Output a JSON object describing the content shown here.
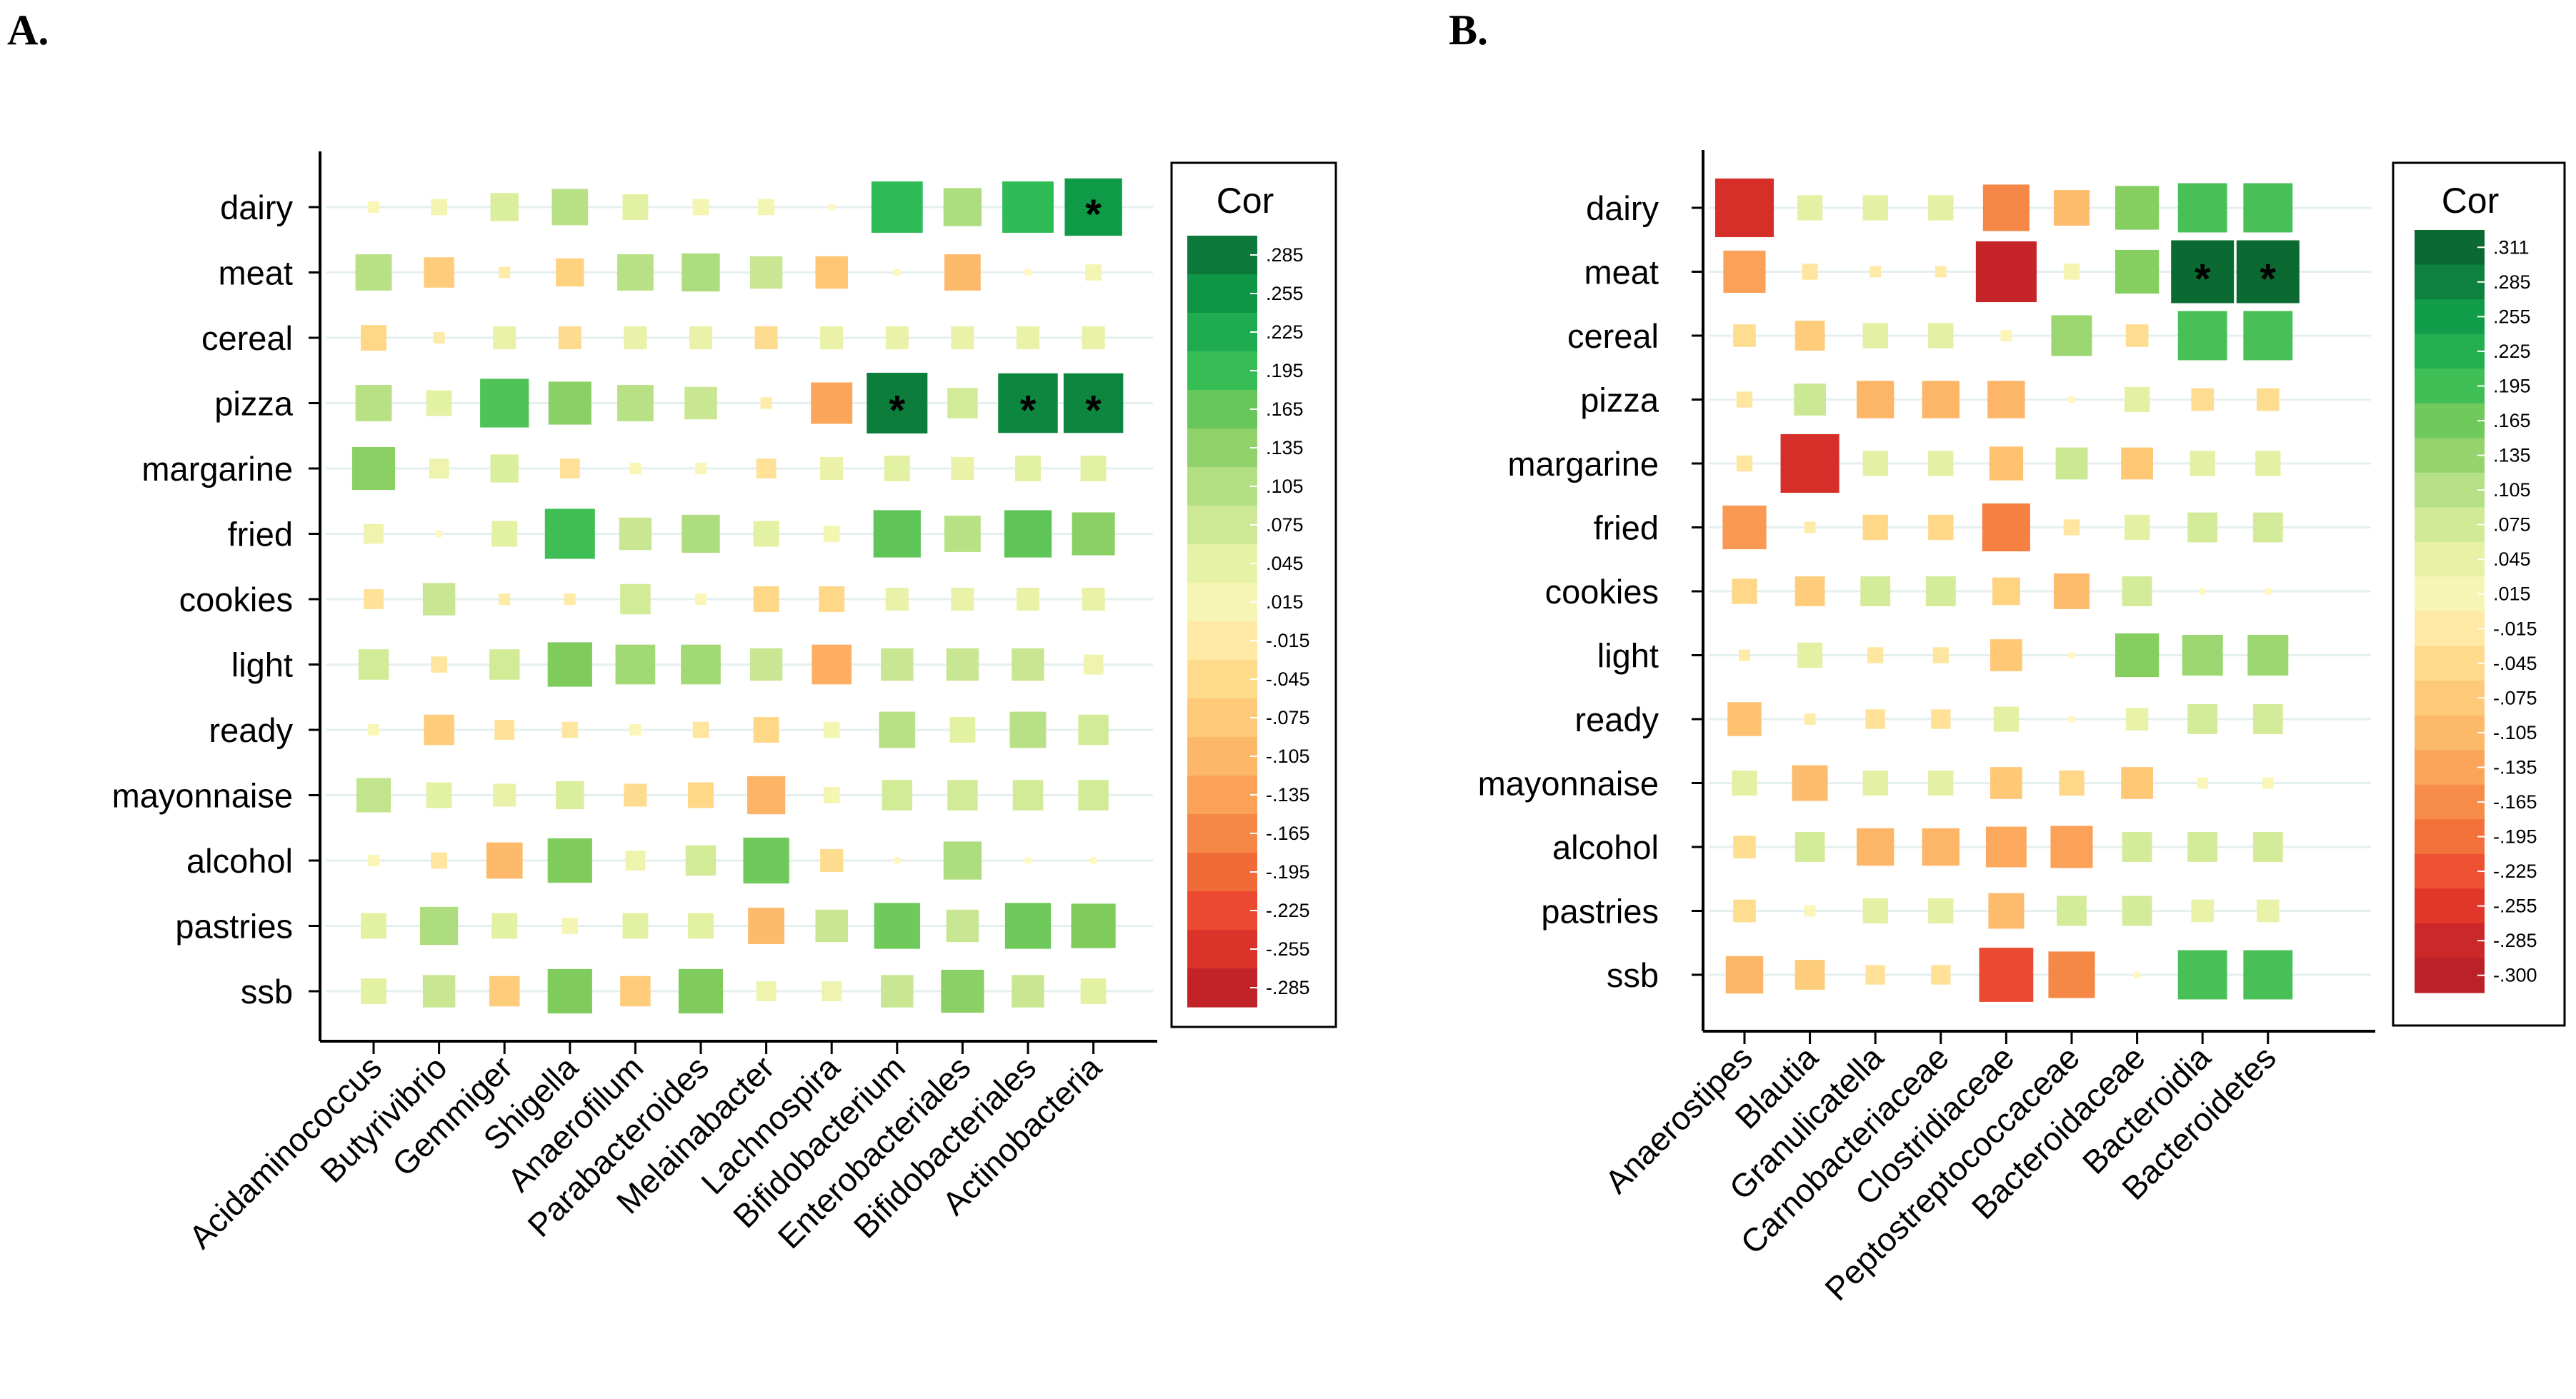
{
  "chart_data": [
    {
      "type": "heatmap",
      "panel": "A.",
      "legend_title": "Cor",
      "legend_ticks": [
        ".285",
        ".255",
        ".225",
        ".195",
        ".165",
        ".135",
        ".105",
        ".075",
        ".045",
        ".015",
        "-.015",
        "-.045",
        "-.075",
        "-.105",
        "-.135",
        "-.165",
        "-.195",
        "-.225",
        "-.255",
        "-.285"
      ],
      "scale_max": 0.3,
      "rows": [
        "dairy",
        "meat",
        "cereal",
        "pizza",
        "margarine",
        "fried",
        "cookies",
        "light",
        "ready",
        "mayonnaise",
        "alcohol",
        "pastries",
        "ssb"
      ],
      "columns": [
        "Acidaminococcus",
        "Butyrivibrio",
        "Gemmiger",
        "Shigella",
        "Anaerofilum",
        "Parabacteroides",
        "Melainabacter",
        "Lachnospira",
        "Bifidobacterium",
        "Enterobacteriales",
        "Bifidobacteriales",
        "Actinobacteria"
      ],
      "values": [
        [
          0.01,
          0.02,
          0.06,
          0.1,
          0.05,
          0.02,
          0.02,
          0.0,
          0.2,
          0.11,
          0.2,
          0.25
        ],
        [
          0.1,
          -0.07,
          -0.01,
          -0.06,
          0.1,
          0.11,
          0.08,
          -0.08,
          0.0,
          -0.1,
          0.0,
          0.02
        ],
        [
          -0.05,
          -0.01,
          0.04,
          -0.04,
          0.04,
          0.04,
          -0.04,
          0.04,
          0.04,
          0.04,
          0.04,
          0.04
        ],
        [
          0.1,
          0.05,
          0.18,
          0.14,
          0.1,
          0.08,
          -0.01,
          -0.13,
          0.28,
          0.07,
          0.27,
          0.27
        ],
        [
          0.14,
          0.03,
          0.06,
          -0.03,
          0.01,
          0.01,
          -0.03,
          0.04,
          0.05,
          0.04,
          0.05,
          0.05
        ],
        [
          0.03,
          0.0,
          0.05,
          0.19,
          0.08,
          0.11,
          0.05,
          0.02,
          0.17,
          0.1,
          0.17,
          0.14
        ],
        [
          -0.03,
          0.08,
          -0.01,
          -0.01,
          0.07,
          0.01,
          -0.05,
          -0.05,
          0.04,
          0.04,
          0.04,
          0.04
        ],
        [
          0.07,
          -0.02,
          0.07,
          0.15,
          0.12,
          0.12,
          0.08,
          -0.12,
          0.08,
          0.08,
          0.08,
          0.03
        ],
        [
          0.01,
          -0.07,
          -0.03,
          -0.02,
          0.01,
          -0.02,
          -0.05,
          0.02,
          0.1,
          0.05,
          0.1,
          0.07
        ],
        [
          0.09,
          0.05,
          0.04,
          0.06,
          -0.04,
          -0.05,
          -0.11,
          0.02,
          0.07,
          0.07,
          0.07,
          0.07
        ],
        [
          0.01,
          -0.02,
          -0.1,
          0.15,
          0.03,
          0.07,
          0.16,
          -0.04,
          0.0,
          0.11,
          0.0,
          0.0
        ],
        [
          0.05,
          0.11,
          0.05,
          0.02,
          0.05,
          0.05,
          -0.1,
          0.08,
          0.16,
          0.08,
          0.16,
          0.15
        ],
        [
          0.05,
          0.08,
          -0.07,
          0.15,
          -0.07,
          0.15,
          0.03,
          0.03,
          0.08,
          0.14,
          0.08,
          0.05
        ]
      ],
      "significant": [
        [
          0,
          11
        ],
        [
          3,
          8
        ],
        [
          3,
          10
        ],
        [
          3,
          11
        ]
      ],
      "significance_marker": "*"
    },
    {
      "type": "heatmap",
      "panel": "B.",
      "legend_title": "Cor",
      "legend_ticks": [
        ".311",
        ".285",
        ".255",
        ".225",
        ".195",
        ".165",
        ".135",
        ".105",
        ".075",
        ".045",
        ".015",
        "-.015",
        "-.045",
        "-.075",
        "-.105",
        "-.135",
        "-.165",
        "-.195",
        "-.225",
        "-.255",
        "-.285",
        "-.300"
      ],
      "scale_max": 0.31,
      "rows": [
        "dairy",
        "meat",
        "cereal",
        "pizza",
        "margarine",
        "fried",
        "cookies",
        "light",
        "ready",
        "mayonnaise",
        "alcohol",
        "pastries",
        "ssb"
      ],
      "columns": [
        "Anaerostipes",
        "Blautia",
        "Granulicatella",
        "Carnobacteriaceae",
        "Clostridiaceae",
        "Peptostreptococcaceae",
        "Bacteroidaceae",
        "Bacteroidia",
        "Bacteroidetes"
      ],
      "values": [
        [
          -0.27,
          0.05,
          0.05,
          0.05,
          -0.17,
          -0.1,
          0.15,
          0.19,
          0.19
        ],
        [
          -0.14,
          -0.02,
          -0.01,
          -0.01,
          -0.29,
          0.02,
          0.15,
          0.31,
          0.31
        ],
        [
          -0.04,
          -0.07,
          0.05,
          0.05,
          0.01,
          0.13,
          -0.04,
          0.19,
          0.19
        ],
        [
          -0.02,
          0.08,
          -0.11,
          -0.11,
          -0.11,
          0.0,
          0.05,
          -0.04,
          -0.04
        ],
        [
          -0.02,
          -0.27,
          0.05,
          0.05,
          -0.09,
          0.08,
          -0.08,
          0.05,
          0.05
        ],
        [
          -0.15,
          -0.01,
          -0.05,
          -0.05,
          -0.18,
          -0.02,
          0.05,
          0.07,
          0.07
        ],
        [
          -0.05,
          -0.07,
          0.07,
          0.07,
          -0.06,
          -0.1,
          0.07,
          0.0,
          0.0
        ],
        [
          -0.01,
          0.05,
          -0.02,
          -0.02,
          -0.08,
          0.0,
          0.15,
          0.13,
          0.13
        ],
        [
          -0.09,
          -0.01,
          -0.03,
          -0.03,
          0.05,
          0.0,
          0.04,
          0.07,
          0.07
        ],
        [
          0.05,
          -0.1,
          0.05,
          0.05,
          -0.08,
          -0.05,
          -0.08,
          0.01,
          0.01
        ],
        [
          -0.04,
          0.07,
          -0.11,
          -0.11,
          -0.13,
          -0.14,
          0.07,
          0.07,
          0.07
        ],
        [
          -0.04,
          0.01,
          0.05,
          0.05,
          -0.1,
          0.07,
          0.07,
          0.04,
          0.04
        ],
        [
          -0.11,
          -0.07,
          -0.03,
          -0.03,
          -0.23,
          -0.17,
          0.0,
          0.19,
          0.19
        ]
      ],
      "significant": [
        [
          1,
          7
        ],
        [
          1,
          8
        ]
      ],
      "significance_marker": "*"
    }
  ]
}
